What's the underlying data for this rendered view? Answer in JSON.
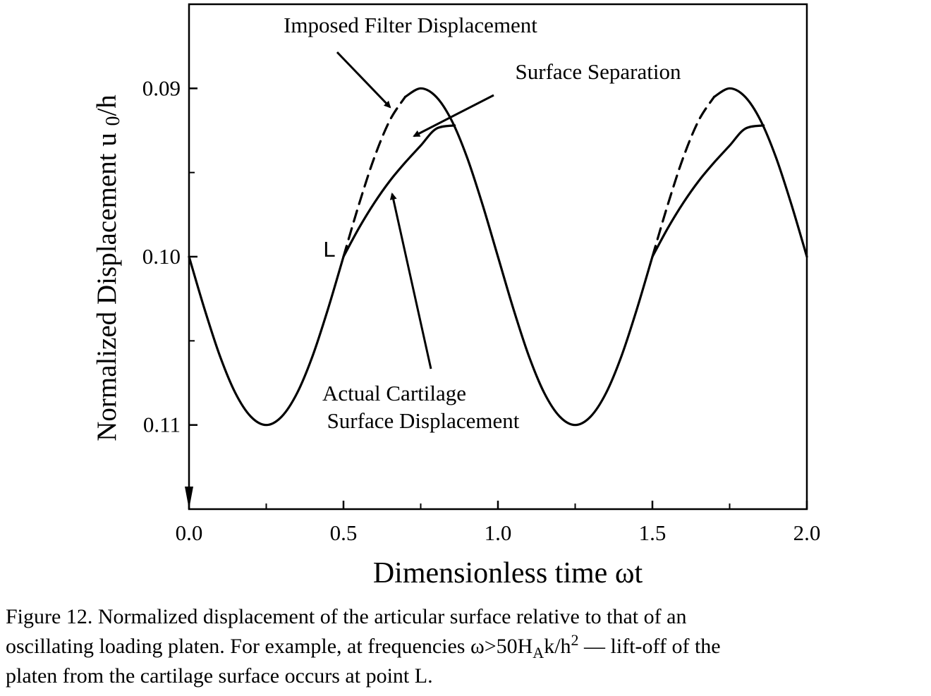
{
  "chart_data": {
    "type": "line",
    "xlabel": "Dimensionless time ωt",
    "ylabel": "Normalized Displacement  u0/h",
    "xlim": [
      0.0,
      2.0
    ],
    "ylim": [
      0.115,
      0.085
    ],
    "y_axis_inverted": true,
    "x_ticks": [
      "0.0",
      "0.5",
      "1.0",
      "1.5",
      "2.0"
    ],
    "y_ticks": [
      "0.09",
      "0.10",
      "0.11"
    ],
    "grid": false,
    "series": [
      {
        "name": "Imposed Filter Displacement",
        "x": [
          0.0,
          0.05,
          0.1,
          0.15,
          0.2,
          0.25,
          0.3,
          0.35,
          0.4,
          0.45,
          0.5,
          0.55,
          0.6,
          0.65,
          0.7,
          0.75,
          0.8,
          0.85,
          0.9,
          0.95,
          1.0,
          1.05,
          1.1,
          1.15,
          1.2,
          1.25,
          1.3,
          1.35,
          1.4,
          1.45,
          1.5,
          1.55,
          1.6,
          1.65,
          1.7,
          1.75,
          1.8,
          1.85,
          1.9,
          1.95,
          2.0
        ],
        "y": [
          0.1,
          0.1031,
          0.1059,
          0.1081,
          0.1095,
          0.11,
          0.1095,
          0.1081,
          0.1059,
          0.1031,
          0.1,
          0.0969,
          0.0941,
          0.0919,
          0.0905,
          0.09,
          0.0905,
          0.0919,
          0.0941,
          0.0969,
          0.1,
          0.1031,
          0.1059,
          0.1081,
          0.1095,
          0.11,
          0.1095,
          0.1081,
          0.1059,
          0.1031,
          0.1,
          0.0969,
          0.0941,
          0.0919,
          0.0905,
          0.09,
          0.0905,
          0.0919,
          0.0941,
          0.0969,
          0.1
        ]
      },
      {
        "name": "Actual Cartilage Surface Displacement",
        "segments": [
          {
            "x": [
              0.5,
              0.55,
              0.6,
              0.65,
              0.7,
              0.75,
              0.8,
              0.86
            ],
            "y": [
              0.1,
              0.0983,
              0.0968,
              0.0955,
              0.0944,
              0.0934,
              0.0924,
              0.0922
            ]
          },
          {
            "x": [
              1.5,
              1.55,
              1.6,
              1.65,
              1.7,
              1.75,
              1.8,
              1.86
            ],
            "y": [
              0.1,
              0.0983,
              0.0968,
              0.0955,
              0.0944,
              0.0934,
              0.0924,
              0.0922
            ]
          }
        ]
      }
    ],
    "annotations": [
      {
        "id": "imposed",
        "text": "Imposed Filter Displacement"
      },
      {
        "id": "separation",
        "text": "Surface Separation"
      },
      {
        "id": "actual_1",
        "text": "Actual Cartilage"
      },
      {
        "id": "actual_2",
        "text": "Surface Displacement"
      },
      {
        "id": "point_l",
        "text": "L"
      }
    ]
  },
  "caption": {
    "line1": "Figure 12. Normalized displacement of the articular surface relative to that of an",
    "line2_a": "oscillating loading platen.  For example, at frequencies ω>50H",
    "line2_sub": "A",
    "line2_b": "k/h",
    "line2_sup": "2",
    "line2_c": " — lift-off of the",
    "line3": "platen from the cartilage surface occurs at point L."
  }
}
